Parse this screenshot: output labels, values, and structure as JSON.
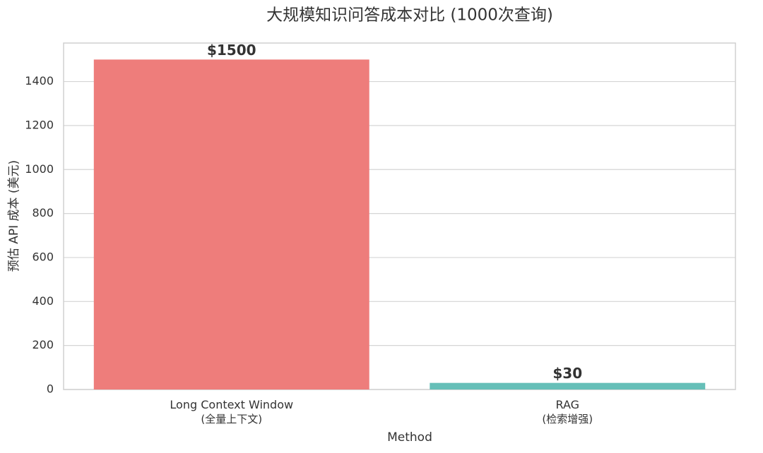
{
  "chart_data": {
    "type": "bar",
    "title": "大规模知识问答成本对比 (1000次查询)",
    "x_label": "Method",
    "y_label": "预估 API 成本 (美元)",
    "categories": [
      "Long Context Window\n(全量上下文)",
      "RAG\n(检索增强)"
    ],
    "values": [
      1500,
      30
    ],
    "value_labels": [
      "$1500",
      "$30"
    ],
    "colors": [
      "#ee7d7b",
      "#66bfb8"
    ],
    "ylim": [
      0,
      1575
    ],
    "yticks": [
      0,
      200,
      400,
      600,
      800,
      1000,
      1200,
      1400
    ],
    "grid": true
  }
}
